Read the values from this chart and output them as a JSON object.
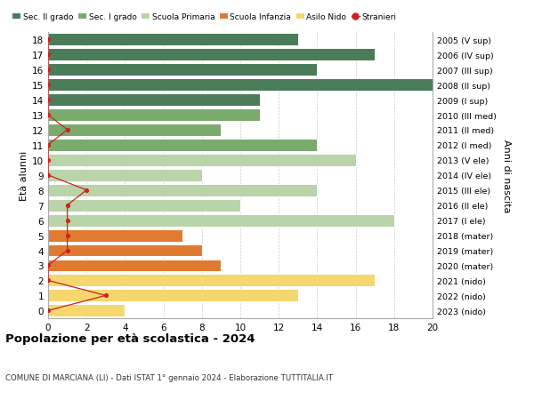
{
  "ages": [
    18,
    17,
    16,
    15,
    14,
    13,
    12,
    11,
    10,
    9,
    8,
    7,
    6,
    5,
    4,
    3,
    2,
    1,
    0
  ],
  "right_labels": [
    "2005 (V sup)",
    "2006 (IV sup)",
    "2007 (III sup)",
    "2008 (II sup)",
    "2009 (I sup)",
    "2010 (III med)",
    "2011 (II med)",
    "2012 (I med)",
    "2013 (V ele)",
    "2014 (IV ele)",
    "2015 (III ele)",
    "2016 (II ele)",
    "2017 (I ele)",
    "2018 (mater)",
    "2019 (mater)",
    "2020 (mater)",
    "2021 (nido)",
    "2022 (nido)",
    "2023 (nido)"
  ],
  "bar_values": [
    13,
    17,
    14,
    20,
    11,
    11,
    9,
    14,
    16,
    8,
    14,
    10,
    18,
    7,
    8,
    9,
    17,
    13,
    4
  ],
  "bar_colors": [
    "#4a7c59",
    "#4a7c59",
    "#4a7c59",
    "#4a7c59",
    "#4a7c59",
    "#7aab6d",
    "#7aab6d",
    "#7aab6d",
    "#b8d4a8",
    "#b8d4a8",
    "#b8d4a8",
    "#b8d4a8",
    "#b8d4a8",
    "#e07a30",
    "#e07a30",
    "#e07a30",
    "#f5d76e",
    "#f5d76e",
    "#f5d76e"
  ],
  "stranieri_values": [
    0,
    0,
    0,
    0,
    0,
    0,
    1,
    0,
    0,
    0,
    2,
    1,
    1,
    1,
    1,
    0,
    0,
    3,
    0
  ],
  "legend_items": [
    {
      "label": "Sec. II grado",
      "color": "#4a7c59"
    },
    {
      "label": "Sec. I grado",
      "color": "#7aab6d"
    },
    {
      "label": "Scuola Primaria",
      "color": "#b8d4a8"
    },
    {
      "label": "Scuola Infanzia",
      "color": "#e07a30"
    },
    {
      "label": "Asilo Nido",
      "color": "#f5d76e"
    },
    {
      "label": "Stranieri",
      "color": "#cc2222"
    }
  ],
  "ylabel_left": "Età alunni",
  "ylabel_right": "Anni di nascita",
  "title": "Popolazione per età scolastica - 2024",
  "subtitle": "COMUNE DI MARCIANA (LI) - Dati ISTAT 1° gennaio 2024 - Elaborazione TUTTITALIA.IT",
  "xlim": [
    0,
    20
  ],
  "xticks": [
    0,
    2,
    4,
    6,
    8,
    10,
    12,
    14,
    16,
    18,
    20
  ],
  "background_color": "#ffffff",
  "grid_color": "#cccccc"
}
